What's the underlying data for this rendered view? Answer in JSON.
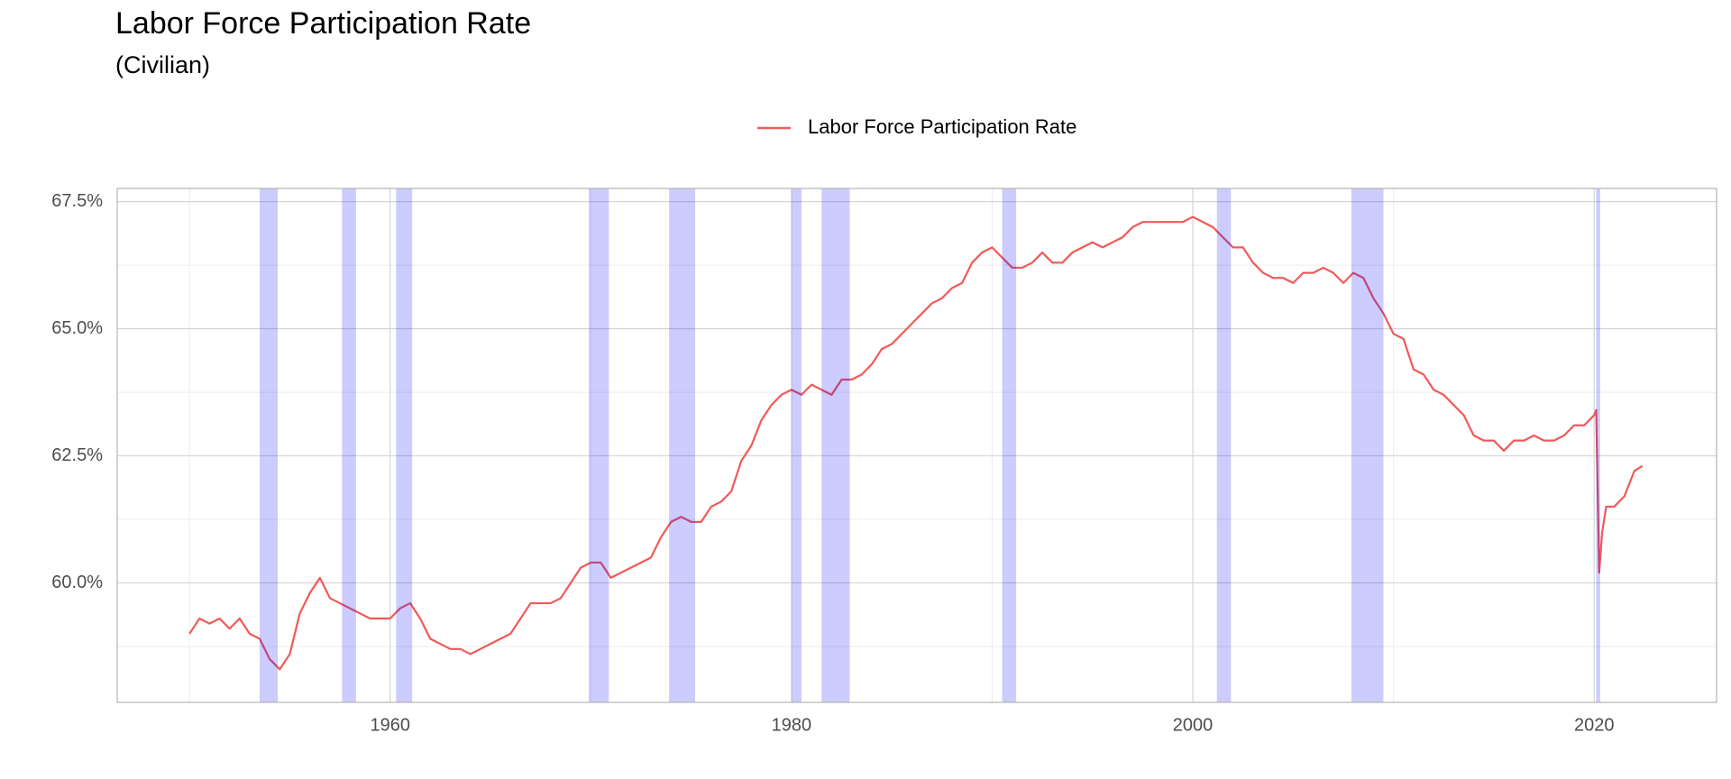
{
  "chart_data": {
    "type": "line",
    "title": "Labor Force Participation Rate",
    "subtitle": "(Civilian)",
    "x": [
      1950,
      1950.5,
      1951,
      1951.5,
      1952,
      1952.5,
      1953,
      1953.5,
      1954,
      1954.5,
      1955,
      1955.5,
      1956,
      1956.5,
      1957,
      1957.5,
      1958,
      1958.5,
      1959,
      1959.5,
      1960,
      1960.5,
      1961,
      1961.5,
      1962,
      1962.5,
      1963,
      1963.5,
      1964,
      1964.5,
      1965,
      1965.5,
      1966,
      1966.5,
      1967,
      1967.5,
      1968,
      1968.5,
      1969,
      1969.5,
      1970,
      1970.5,
      1971,
      1971.5,
      1972,
      1972.5,
      1973,
      1973.5,
      1974,
      1974.5,
      1975,
      1975.5,
      1976,
      1976.5,
      1977,
      1977.5,
      1978,
      1978.5,
      1979,
      1979.5,
      1980,
      1980.5,
      1981,
      1981.5,
      1982,
      1982.5,
      1983,
      1983.5,
      1984,
      1984.5,
      1985,
      1985.5,
      1986,
      1986.5,
      1987,
      1987.5,
      1988,
      1988.5,
      1989,
      1989.5,
      1990,
      1990.5,
      1991,
      1991.5,
      1992,
      1992.5,
      1993,
      1993.5,
      1994,
      1994.5,
      1995,
      1995.5,
      1996,
      1996.5,
      1997,
      1997.5,
      1998,
      1998.5,
      1999,
      1999.5,
      2000,
      2000.5,
      2001,
      2001.5,
      2002,
      2002.5,
      2003,
      2003.5,
      2004,
      2004.5,
      2005,
      2005.5,
      2006,
      2006.5,
      2007,
      2007.5,
      2008,
      2008.5,
      2009,
      2009.5,
      2010,
      2010.5,
      2011,
      2011.5,
      2012,
      2012.5,
      2013,
      2013.5,
      2014,
      2014.5,
      2015,
      2015.5,
      2016,
      2016.5,
      2017,
      2017.5,
      2018,
      2018.5,
      2019,
      2019.5,
      2020,
      2020.1,
      2020.25,
      2020.4,
      2020.6,
      2021,
      2021.5,
      2022,
      2022.4
    ],
    "series": [
      {
        "name": "Labor Force Participation Rate",
        "color": "#f05a57",
        "values": [
          59.0,
          59.3,
          59.2,
          59.3,
          59.1,
          59.3,
          59.0,
          58.9,
          58.5,
          58.3,
          58.6,
          59.4,
          59.8,
          60.1,
          59.7,
          59.6,
          59.5,
          59.4,
          59.3,
          59.3,
          59.3,
          59.5,
          59.6,
          59.3,
          58.9,
          58.8,
          58.7,
          58.7,
          58.6,
          58.7,
          58.8,
          58.9,
          59.0,
          59.3,
          59.6,
          59.6,
          59.6,
          59.7,
          60.0,
          60.3,
          60.4,
          60.4,
          60.1,
          60.2,
          60.3,
          60.4,
          60.5,
          60.9,
          61.2,
          61.3,
          61.2,
          61.2,
          61.5,
          61.6,
          61.8,
          62.4,
          62.7,
          63.2,
          63.5,
          63.7,
          63.8,
          63.7,
          63.9,
          63.8,
          63.7,
          64.0,
          64.0,
          64.1,
          64.3,
          64.6,
          64.7,
          64.9,
          65.1,
          65.3,
          65.5,
          65.6,
          65.8,
          65.9,
          66.3,
          66.5,
          66.6,
          66.4,
          66.2,
          66.2,
          66.3,
          66.5,
          66.3,
          66.3,
          66.5,
          66.6,
          66.7,
          66.6,
          66.7,
          66.8,
          67.0,
          67.1,
          67.1,
          67.1,
          67.1,
          67.1,
          67.2,
          67.1,
          67.0,
          66.8,
          66.6,
          66.6,
          66.3,
          66.1,
          66.0,
          66.0,
          65.9,
          66.1,
          66.1,
          66.2,
          66.1,
          65.9,
          66.1,
          66.0,
          65.6,
          65.3,
          64.9,
          64.8,
          64.2,
          64.1,
          63.8,
          63.7,
          63.5,
          63.3,
          62.9,
          62.8,
          62.8,
          62.6,
          62.8,
          62.8,
          62.9,
          62.8,
          62.8,
          62.9,
          63.1,
          63.1,
          63.3,
          63.4,
          60.2,
          61.0,
          61.5,
          61.5,
          61.7,
          62.2,
          62.3
        ]
      }
    ],
    "recessions": {
      "color": "#0000ff",
      "start": [
        1953.5,
        1957.6,
        1960.3,
        1969.9,
        1973.9,
        1980.0,
        1981.5,
        1990.5,
        2001.2,
        2007.9,
        2020.1
      ],
      "end": [
        1954.4,
        1958.3,
        1961.1,
        1970.9,
        1975.2,
        1980.5,
        1982.9,
        1991.2,
        2001.9,
        2009.5,
        2020.3
      ]
    },
    "xlim": [
      1946.4,
      2026.1
    ],
    "xticks": [
      1960,
      1980,
      2000,
      2020
    ],
    "ylim": [
      57.65,
      67.76
    ],
    "yticks": [
      {
        "value": 60,
        "label": "60.0%"
      },
      {
        "value": 62.5,
        "label": "62.5%"
      },
      {
        "value": 65,
        "label": "65.0%"
      },
      {
        "value": 67.5,
        "label": "67.5%"
      }
    ],
    "grid": true,
    "legend": "top"
  }
}
